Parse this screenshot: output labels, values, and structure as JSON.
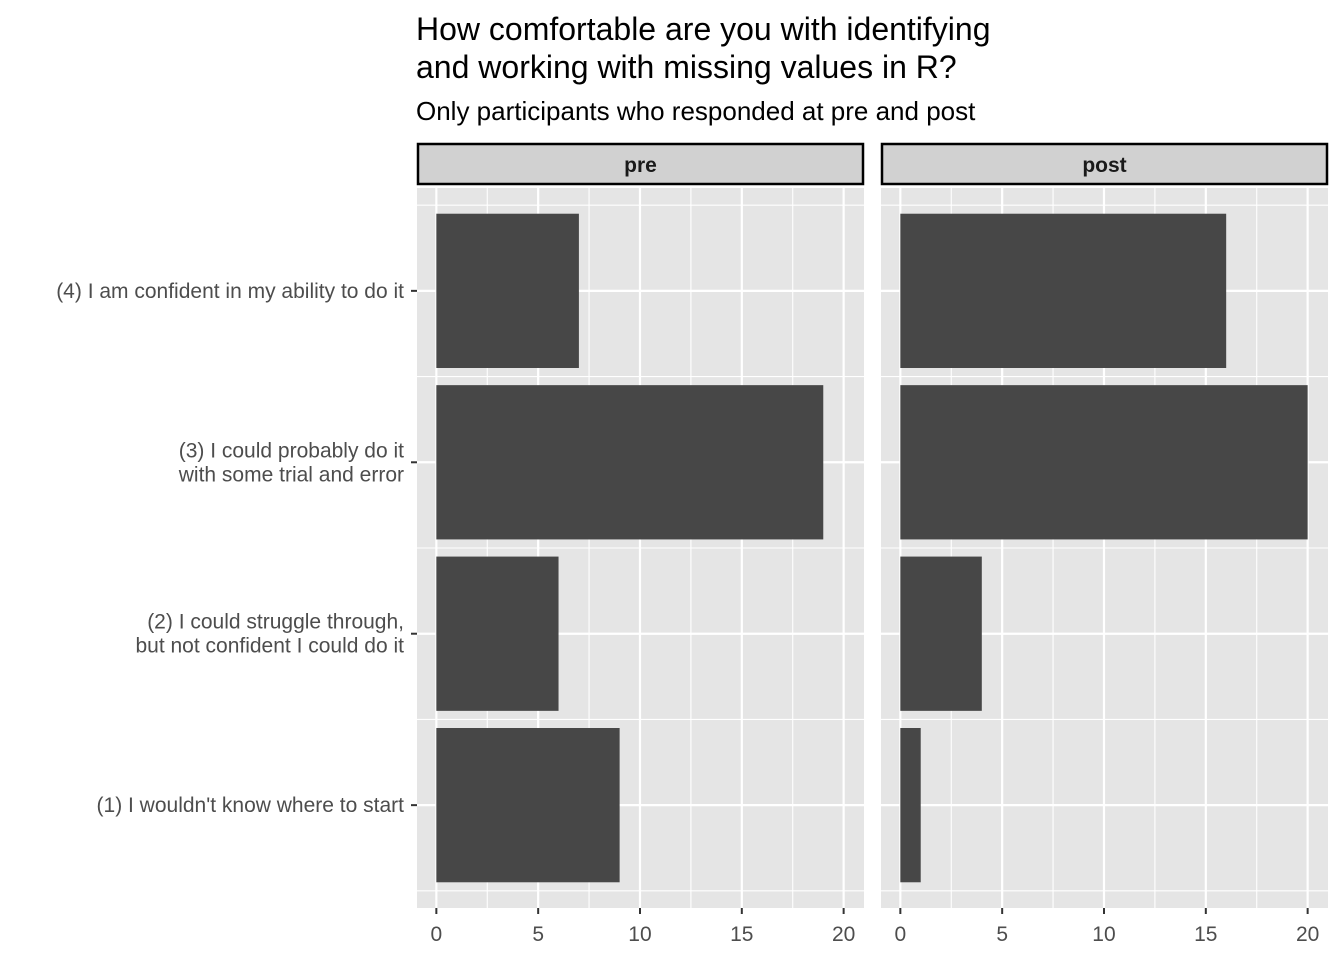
{
  "chart_data": {
    "type": "bar",
    "orientation": "horizontal",
    "title_lines": [
      "How comfortable are you with identifying",
      "and working with missing values in R?"
    ],
    "subtitle": "Only participants who responded at pre and post",
    "categories": [
      [
        "(4) I am confident in my ability to do it"
      ],
      [
        "(3) I could probably do it",
        "with some trial and error"
      ],
      [
        "(2) I could struggle through,",
        "but not confident I could do it"
      ],
      [
        "(1) I wouldn't know where to start"
      ]
    ],
    "facets": [
      {
        "name": "pre",
        "values": [
          7,
          19,
          6,
          9
        ]
      },
      {
        "name": "post",
        "values": [
          16,
          20,
          4,
          1
        ]
      }
    ],
    "x_ticks": [
      0,
      5,
      10,
      15,
      20
    ],
    "xlim": [
      -0.95,
      21
    ],
    "xlabel": "",
    "ylabel": "",
    "grid": true,
    "colors": {
      "bar": "#474747",
      "panel": "#e5e5e5",
      "grid": "#ffffff",
      "strip": "#d1d1d1"
    }
  }
}
